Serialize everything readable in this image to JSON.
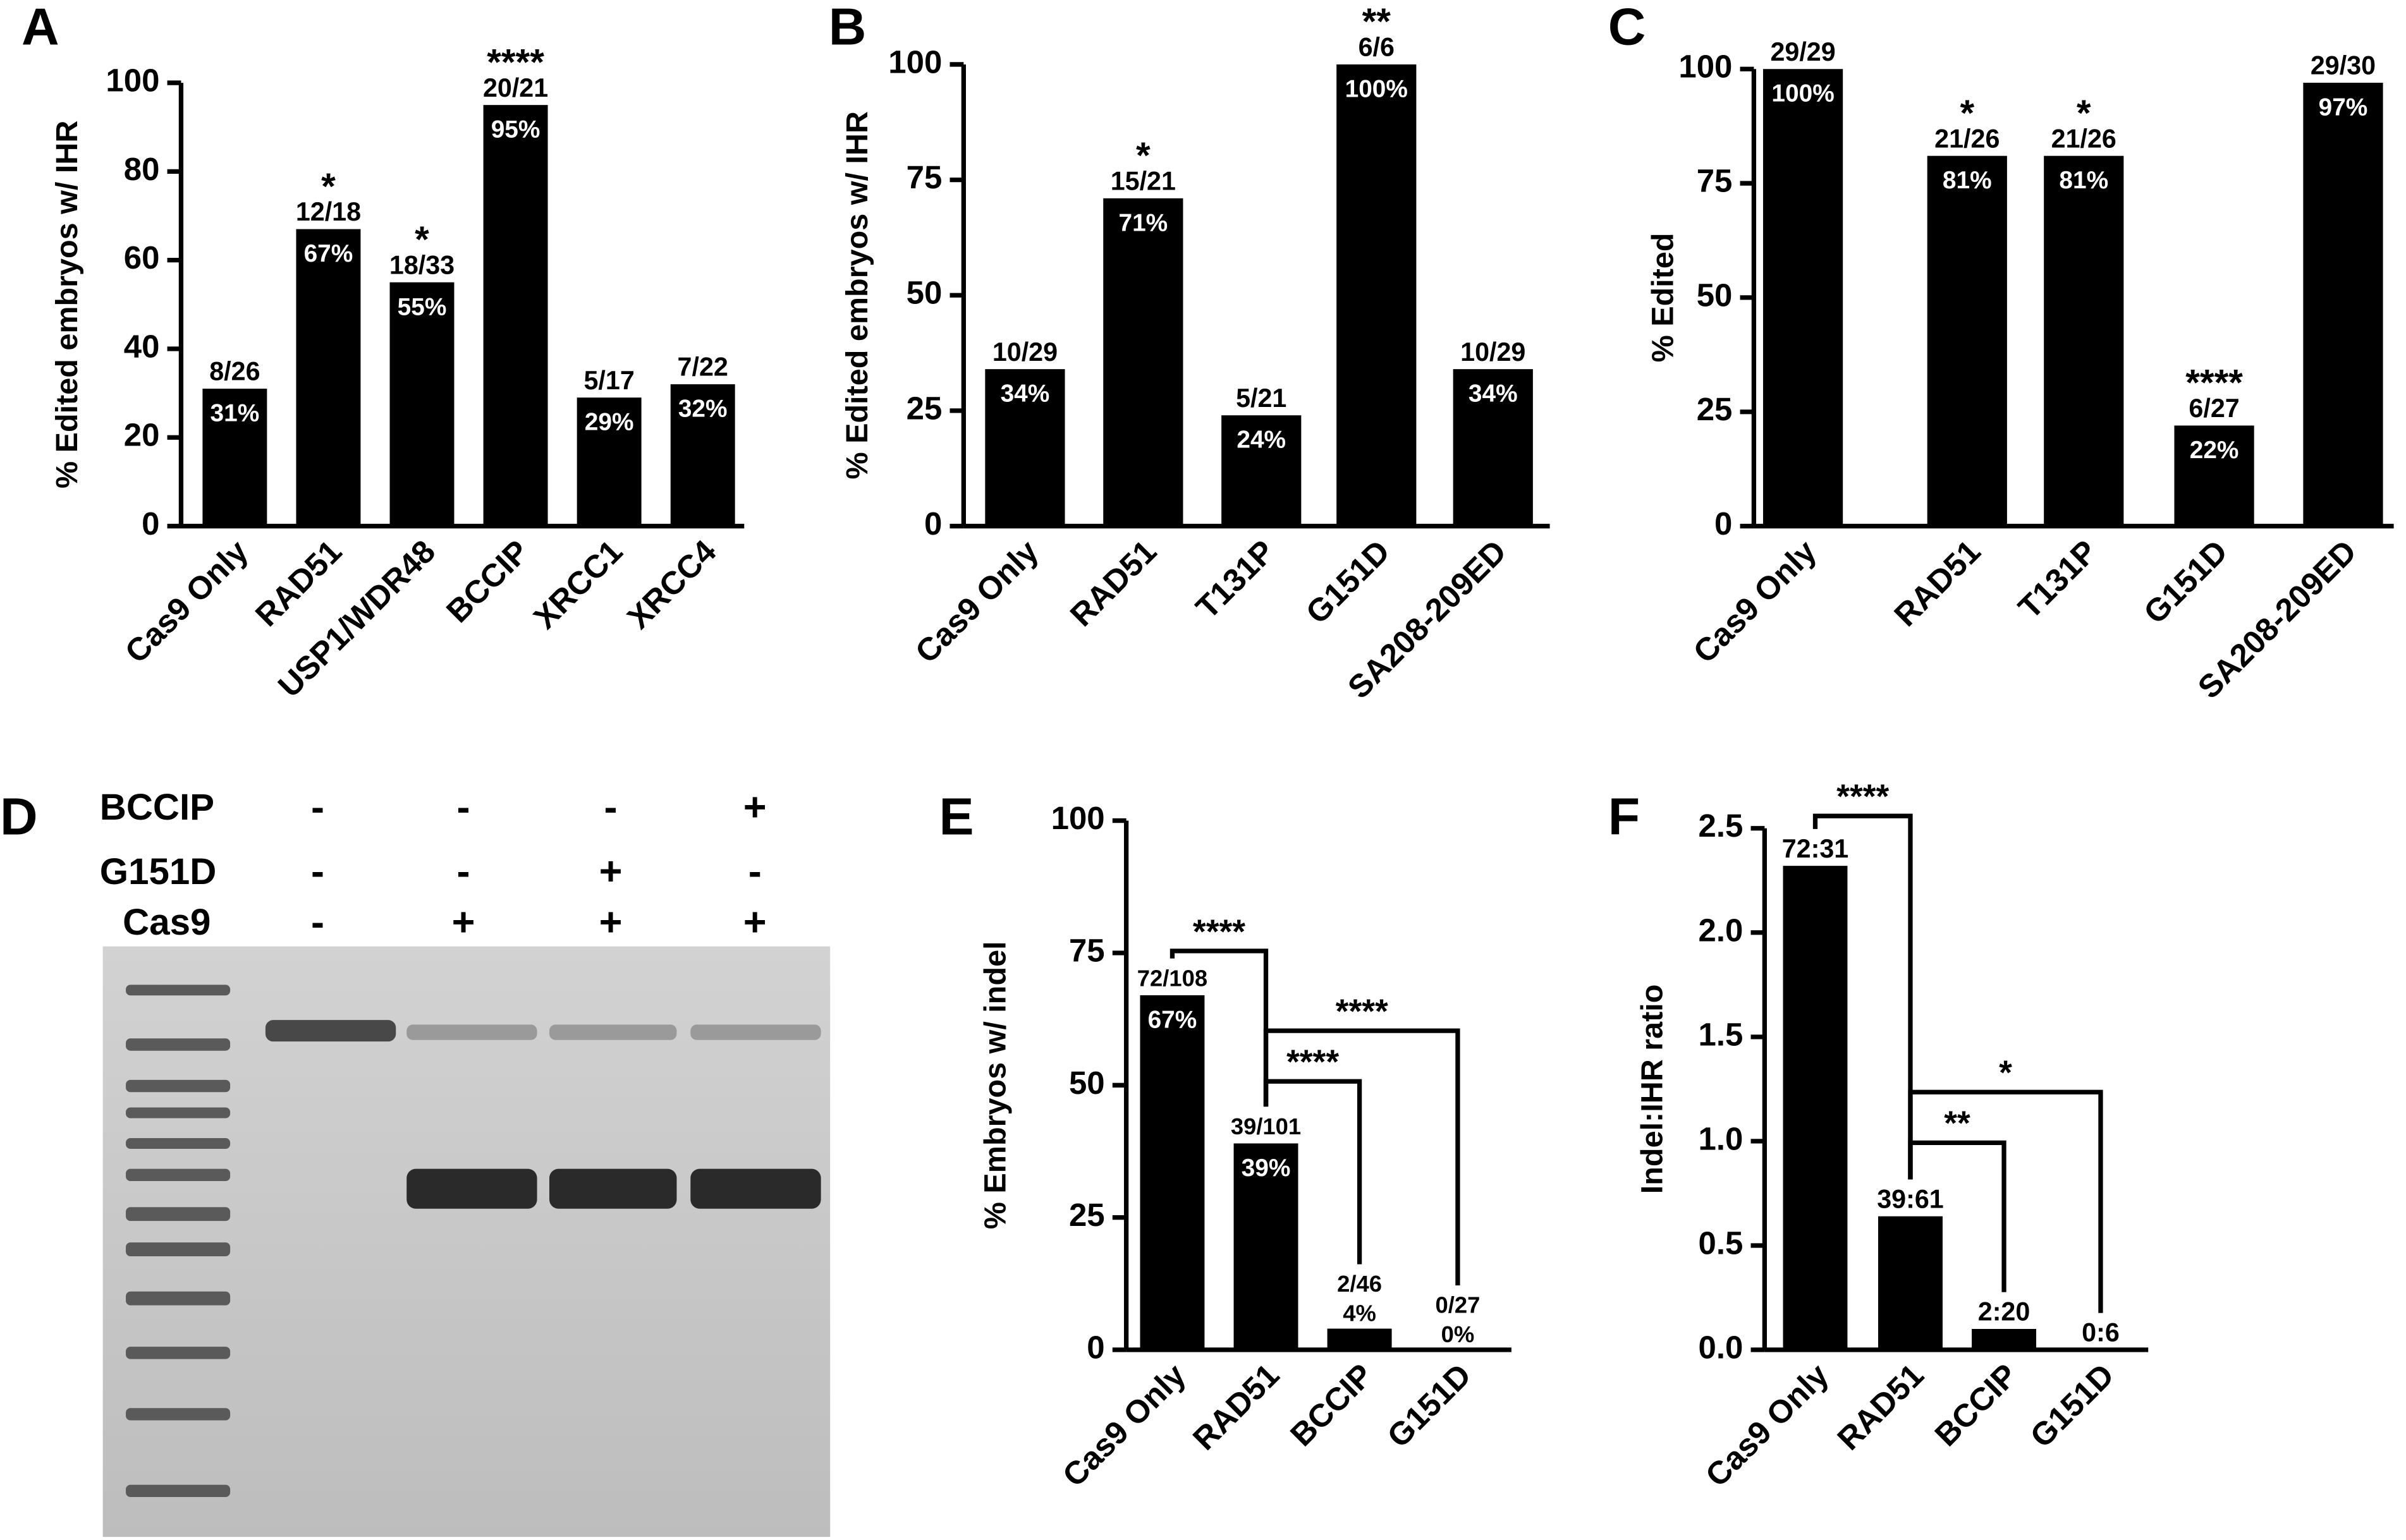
{
  "chart_data": [
    {
      "type": "bar",
      "panel": "A",
      "y_label": "% Edited embryos w/ IHR",
      "categories": [
        "Cas9 Only",
        "RAD51",
        "USP1/WDR48",
        "BCCIP",
        "XRCC1",
        "XRCC4"
      ],
      "values": [
        31,
        67,
        55,
        95,
        29,
        32
      ],
      "value_labels": [
        "31%",
        "67%",
        "55%",
        "95%",
        "29%",
        "32%"
      ],
      "fractions": [
        "8/26",
        "12/18",
        "18/33",
        "20/21",
        "5/17",
        "7/22"
      ],
      "significance": [
        null,
        "*",
        "*",
        "****",
        null,
        null
      ],
      "color": "#000000",
      "ylim": [
        0,
        100
      ],
      "yticks": [
        0,
        20,
        40,
        60,
        80,
        100
      ]
    },
    {
      "type": "bar",
      "panel": "B",
      "y_label": "% Edited embryos w/ IHR",
      "categories": [
        "Cas9 Only",
        "RAD51",
        "T131P",
        "G151D",
        "SA208-209ED"
      ],
      "values": [
        34,
        71,
        24,
        100,
        34
      ],
      "value_labels": [
        "34%",
        "71%",
        "24%",
        "100%",
        "34%"
      ],
      "fractions": [
        "10/29",
        "15/21",
        "5/21",
        "6/6",
        "10/29"
      ],
      "significance": [
        null,
        "*",
        null,
        "**",
        null
      ],
      "color": "#000000",
      "ylim": [
        0,
        100
      ],
      "yticks": [
        0,
        25,
        50,
        75,
        100
      ]
    },
    {
      "type": "bar",
      "panel": "C",
      "y_label": "% Edited",
      "categories": [
        "Cas9 Only",
        "RAD51",
        "T131P",
        "G151D",
        "SA208-209ED"
      ],
      "values": [
        100,
        81,
        81,
        22,
        97
      ],
      "value_labels": [
        "100%",
        "81%",
        "81%",
        "22%",
        "97%"
      ],
      "fractions": [
        "29/29",
        "21/26",
        "21/26",
        "6/27",
        "29/30"
      ],
      "significance": [
        null,
        "*",
        "*",
        "****",
        null
      ],
      "color": "#000000",
      "ylim": [
        0,
        100
      ],
      "yticks": [
        0,
        25,
        50,
        75,
        100
      ]
    },
    {
      "type": "bar",
      "panel": "E",
      "y_label": "% Embryos w/ indel",
      "categories": [
        "Cas9 Only",
        "RAD51",
        "BCCIP",
        "G151D"
      ],
      "values": [
        67,
        39,
        4,
        0
      ],
      "value_labels": [
        "67%",
        "39%",
        "4%",
        "0%"
      ],
      "fractions": [
        "72/108",
        "39/101",
        "2/46",
        "0/27"
      ],
      "comparisons": [
        {
          "between": [
            0,
            1
          ],
          "label": "****"
        },
        {
          "between": [
            1,
            2
          ],
          "label": "****"
        },
        {
          "between": [
            1,
            3
          ],
          "label": "****"
        }
      ],
      "color": "#000000",
      "ylim": [
        0,
        100
      ],
      "yticks": [
        0,
        25,
        50,
        75,
        100
      ]
    },
    {
      "type": "bar",
      "panel": "F",
      "y_label": "Indel:IHR ratio",
      "categories": [
        "Cas9 Only",
        "RAD51",
        "BCCIP",
        "G151D"
      ],
      "values": [
        2.32,
        0.64,
        0.1,
        0
      ],
      "ratio_labels": [
        "72:31",
        "39:61",
        "2:20",
        "0:6"
      ],
      "comparisons": [
        {
          "between": [
            0,
            1
          ],
          "label": "****"
        },
        {
          "between": [
            1,
            2
          ],
          "label": "**"
        },
        {
          "between": [
            1,
            3
          ],
          "label": "*"
        }
      ],
      "color": "#000000",
      "ylim": [
        0,
        2.5
      ],
      "yticks": [
        {
          "value": 0,
          "label": "0.0"
        },
        0.5,
        {
          "value": 1,
          "label": "1.0"
        },
        1.5,
        {
          "value": 2,
          "label": "2.0"
        },
        2.5
      ]
    }
  ],
  "gel": {
    "panel": "D",
    "rows": [
      {
        "label": "BCCIP",
        "lanes": [
          "-",
          "-",
          "-",
          "+"
        ]
      },
      {
        "label": "G151D",
        "lanes": [
          "-",
          "-",
          "+",
          "-"
        ]
      },
      {
        "label": "Cas9",
        "lanes": [
          "-",
          "+",
          "+",
          "+"
        ]
      }
    ]
  }
}
